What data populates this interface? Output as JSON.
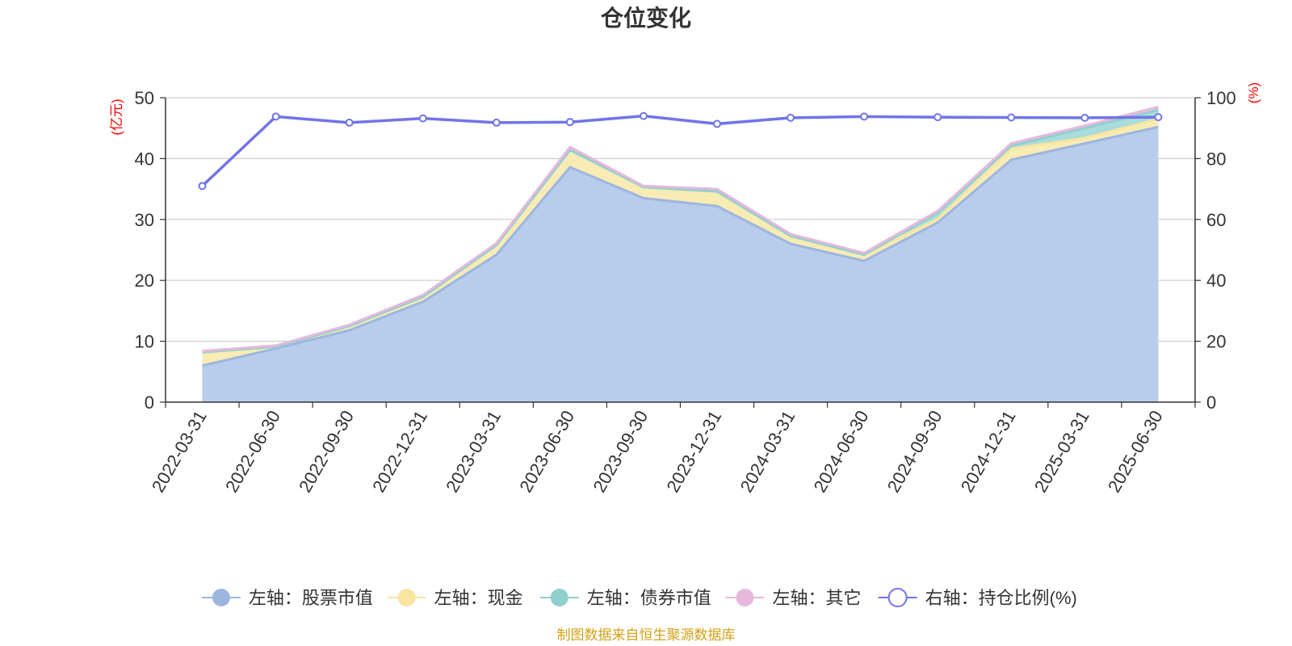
{
  "chart_data": {
    "type": "area",
    "title": "仓位变化",
    "left_axis": {
      "name": "(亿元)",
      "ylim": [
        0,
        50
      ],
      "ticks": [
        "0",
        "10",
        "20",
        "30",
        "40",
        "50"
      ]
    },
    "right_axis": {
      "name": "(%)",
      "ylim": [
        0,
        100
      ],
      "ticks": [
        "0",
        "20",
        "40",
        "60",
        "80",
        "100"
      ]
    },
    "categories": [
      "2022-03-31",
      "2022-06-30",
      "2022-09-30",
      "2022-12-31",
      "2023-03-31",
      "2023-06-30",
      "2023-09-30",
      "2023-12-31",
      "2024-03-31",
      "2024-06-30",
      "2024-09-30",
      "2024-12-31",
      "2025-03-31",
      "2025-06-30"
    ],
    "series": [
      {
        "name": "左轴：股票市值",
        "axis": "left",
        "stacked": true,
        "color": "#9cb6e0",
        "fill": "#b8cceb",
        "values": [
          6.0,
          8.8,
          11.8,
          16.5,
          24.2,
          38.6,
          33.5,
          32.2,
          26.0,
          23.2,
          29.5,
          39.8,
          42.5,
          45.2
        ]
      },
      {
        "name": "左轴：现金",
        "axis": "left",
        "stacked": true,
        "color": "#f7e5a0",
        "fill": "#f9ebb4",
        "values": [
          2.2,
          0.3,
          0.7,
          0.8,
          1.6,
          2.8,
          1.8,
          2.4,
          1.3,
          1.0,
          0.6,
          1.8,
          0.9,
          1.3
        ]
      },
      {
        "name": "左轴：债券市值",
        "axis": "left",
        "stacked": true,
        "color": "#8fd0cf",
        "fill": "#a9dcdb",
        "values": [
          0,
          0,
          0,
          0,
          0,
          0,
          0,
          0,
          0,
          0,
          1.0,
          0.5,
          1.6,
          1.5
        ]
      },
      {
        "name": "左轴：其它",
        "axis": "left",
        "stacked": true,
        "color": "#e6b8dc",
        "fill": "#ecc6e3",
        "values": [
          0.2,
          0.2,
          0.2,
          0.3,
          0.3,
          0.5,
          0.2,
          0.4,
          0.3,
          0.3,
          0.3,
          0.4,
          0.4,
          0.5
        ]
      },
      {
        "name": "右轴：持仓比例(%)",
        "axis": "right",
        "stacked": false,
        "color": "#7174e8",
        "fill": "none",
        "values": [
          71.0,
          93.8,
          91.8,
          93.2,
          91.8,
          92.0,
          94.0,
          91.4,
          93.4,
          93.8,
          93.6,
          93.5,
          93.4,
          93.6
        ]
      }
    ],
    "grid": true,
    "legend_position": "bottom"
  },
  "footer": "制图数据来自恒生聚源数据库"
}
